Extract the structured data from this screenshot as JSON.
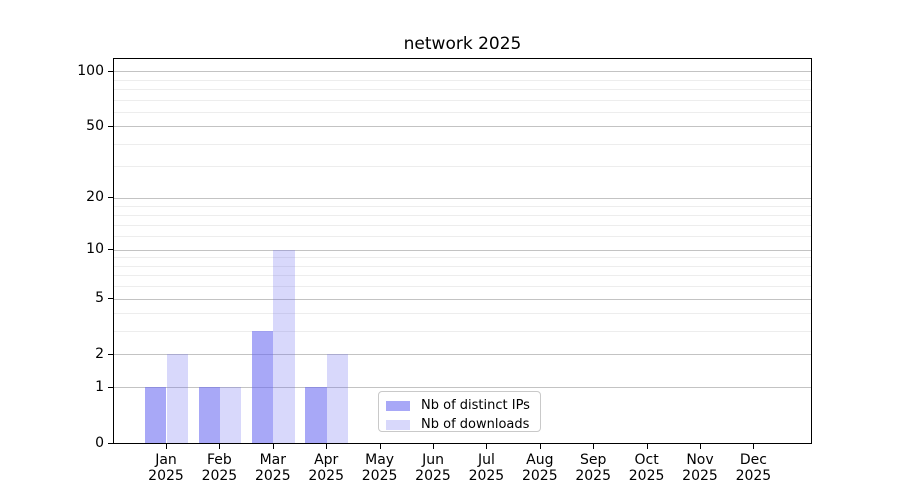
{
  "title": "network 2025",
  "chart_data": {
    "type": "bar",
    "title": "network 2025",
    "categories": [
      "Jan",
      "Feb",
      "Mar",
      "Apr",
      "May",
      "Jun",
      "Jul",
      "Aug",
      "Sep",
      "Oct",
      "Nov",
      "Dec"
    ],
    "category_year": "2025",
    "series": [
      {
        "name": "Nb of distinct IPs",
        "base_color": "#6464f0",
        "alpha": 0.56,
        "values": [
          1,
          1,
          3,
          1,
          0,
          0,
          0,
          0,
          0,
          0,
          0,
          0
        ]
      },
      {
        "name": "Nb of downloads",
        "base_color": "#6464f0",
        "alpha": 0.25,
        "values": [
          2,
          1,
          10,
          2,
          0,
          0,
          0,
          0,
          0,
          0,
          0,
          0
        ]
      }
    ],
    "xlabel": "",
    "ylabel": "",
    "yscale": "log1p",
    "ylim": [
      0,
      116.5
    ],
    "yticks": [
      0,
      1,
      2,
      5,
      10,
      20,
      50,
      100
    ],
    "yticks_minor": [
      3,
      4,
      6,
      7,
      8,
      9,
      12,
      14,
      16,
      18,
      30,
      40,
      60,
      70,
      80,
      90
    ],
    "grid": true,
    "legend_position": "lower center inside axes",
    "colors": {
      "grid_major": "#c3c3c3",
      "grid_minor": "#ededed",
      "axis": "#000000",
      "text": "#000000",
      "background": "#ffffff"
    }
  }
}
